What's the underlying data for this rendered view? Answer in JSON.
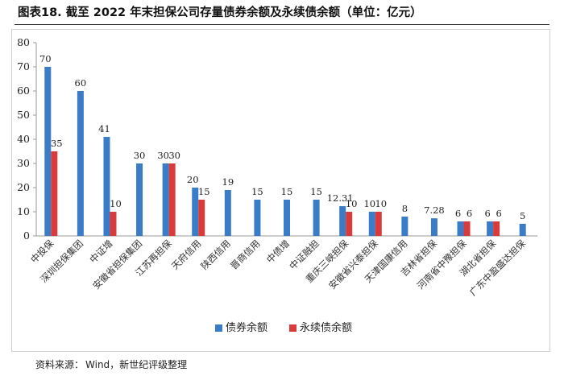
{
  "figure": {
    "title": "图表18.  截至 2022 年末担保公司存量债券余额及永续债余额（单位：亿元）",
    "source_label": "资料来源：",
    "source_text": "Wind，新世纪评级整理"
  },
  "chart_data": {
    "type": "bar",
    "title": "截至 2022 年末担保公司存量债券余额及永续债余额（单位：亿元）",
    "unit": "亿元",
    "xlabel": "",
    "ylabel": "",
    "ylim": [
      0,
      80
    ],
    "yticks": [
      0,
      10,
      20,
      30,
      40,
      50,
      60,
      70,
      80
    ],
    "grid": false,
    "legend_position": "bottom-center",
    "categories": [
      "中投保",
      "深圳担保集团",
      "中证增",
      "安徽省担保集团",
      "江苏再担保",
      "天府信用",
      "陕西信用",
      "晋商信用",
      "中债增",
      "中证融担",
      "重庆三峡担保",
      "安徽省兴泰担保",
      "天津国康信用",
      "吉林省担保",
      "河南省中豫担保",
      "湖北省担保",
      "广东中盈盛达担保"
    ],
    "series": [
      {
        "name": "债券余额",
        "color": "#3a7cc8",
        "values": [
          70,
          60,
          41,
          30,
          30,
          20,
          19,
          15,
          15,
          15,
          12.31,
          10,
          8,
          7.28,
          6,
          6,
          5
        ]
      },
      {
        "name": "永续债余额",
        "color": "#d93a3a",
        "values": [
          35,
          null,
          10,
          null,
          30,
          15,
          null,
          null,
          null,
          null,
          10,
          10,
          null,
          null,
          6,
          6,
          null
        ]
      }
    ]
  }
}
